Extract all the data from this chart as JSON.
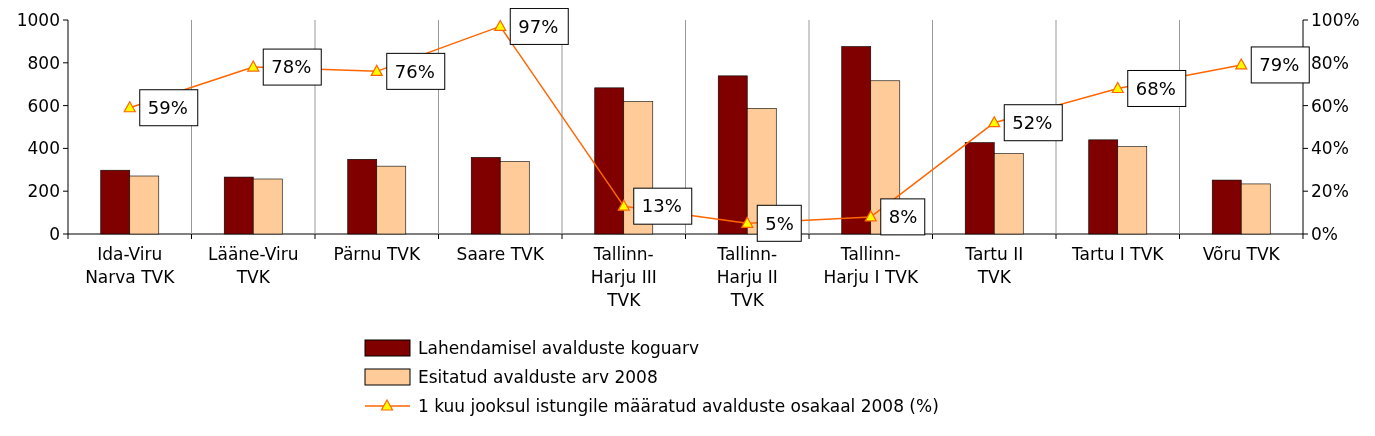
{
  "chart_data": {
    "type": "bar",
    "categories": [
      "Ida-Viru Narva TVK",
      "Lääne-Viru TVK",
      "Pärnu TVK",
      "Saare TVK",
      "Tallinn-Harju III TVK",
      "Tallinn-Harju II TVK",
      "Tallinn-Harju I TVK",
      "Tartu II TVK",
      "Tartu I TVK",
      "Võru TVK"
    ],
    "series": [
      {
        "name": "Lahendamisel avalduste koguarv",
        "color": "#800000",
        "values": [
          298,
          266,
          349,
          358,
          683,
          739,
          876,
          427,
          440,
          252
        ]
      },
      {
        "name": "Esitatud avalduste arv 2008",
        "color": "#ffcc99",
        "values": [
          271,
          257,
          317,
          339,
          619,
          587,
          716,
          376,
          408,
          234
        ]
      },
      {
        "name": "1 kuu jooksul istungile määratud avalduste osakaal 2008 (%)",
        "type": "line",
        "axis": "y2",
        "color": "#ff6600",
        "marker": "triangle",
        "values": [
          59,
          78,
          76,
          97,
          13,
          5,
          8,
          52,
          68,
          79
        ],
        "value_labels": [
          "59%",
          "78%",
          "76%",
          "97%",
          "13%",
          "5%",
          "8%",
          "52%",
          "68%",
          "79%"
        ]
      }
    ],
    "ylim": [
      0,
      1000
    ],
    "yticks": [
      0,
      200,
      400,
      600,
      800,
      1000
    ],
    "y2lim": [
      0,
      100
    ],
    "y2ticks": [
      {
        "value": 0,
        "label": "0%"
      },
      {
        "value": 20,
        "label": "20%"
      },
      {
        "value": 40,
        "label": "40%"
      },
      {
        "value": 60,
        "label": "60%"
      },
      {
        "value": 80,
        "label": "80%"
      },
      {
        "value": 100,
        "label": "100%"
      }
    ],
    "grid": "x",
    "legend": "bottom"
  }
}
